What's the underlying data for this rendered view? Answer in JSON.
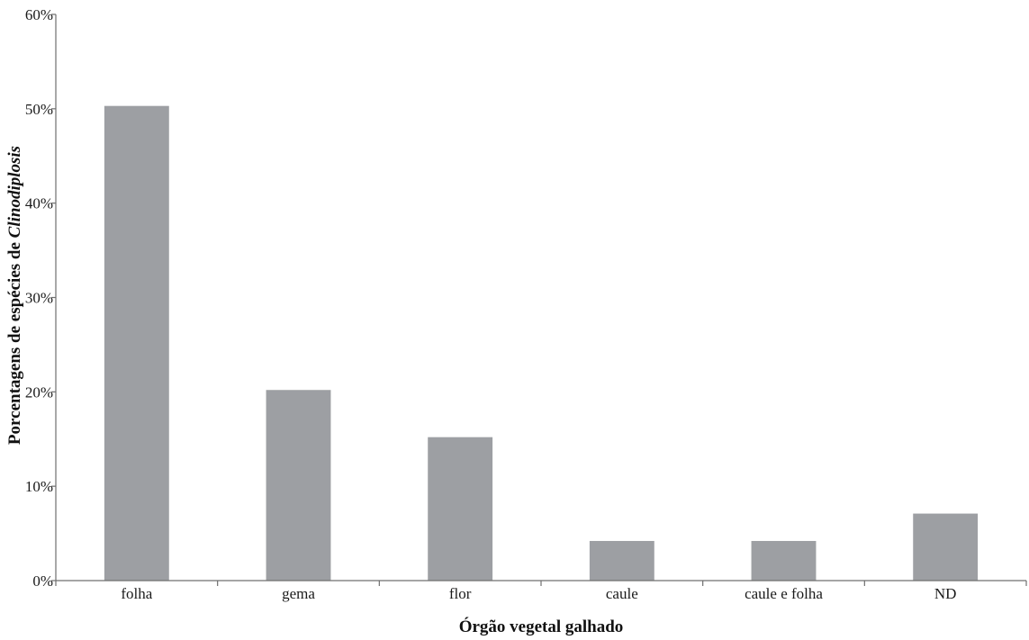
{
  "chart_data": {
    "type": "bar",
    "categories": [
      "folha",
      "gema",
      "flor",
      "caule",
      "caule e folha",
      "ND"
    ],
    "values": [
      50.3,
      20.2,
      15.2,
      4.2,
      4.2,
      7.1
    ],
    "ylim": [
      0,
      60
    ],
    "yticks": [
      0,
      10,
      20,
      30,
      40,
      50,
      60
    ],
    "ytick_labels": [
      "0%",
      "10%",
      "20%",
      "30%",
      "40%",
      "50%",
      "60%"
    ],
    "xlabel": "Órgão vegetal galhado",
    "ylabel_prefix": "Porcentagens de espécies de ",
    "ylabel_italic": "Clinodiplosis",
    "bar_color": "#9d9fa3",
    "axis_color": "#6f6f6f",
    "grid": false,
    "legend": "none"
  }
}
